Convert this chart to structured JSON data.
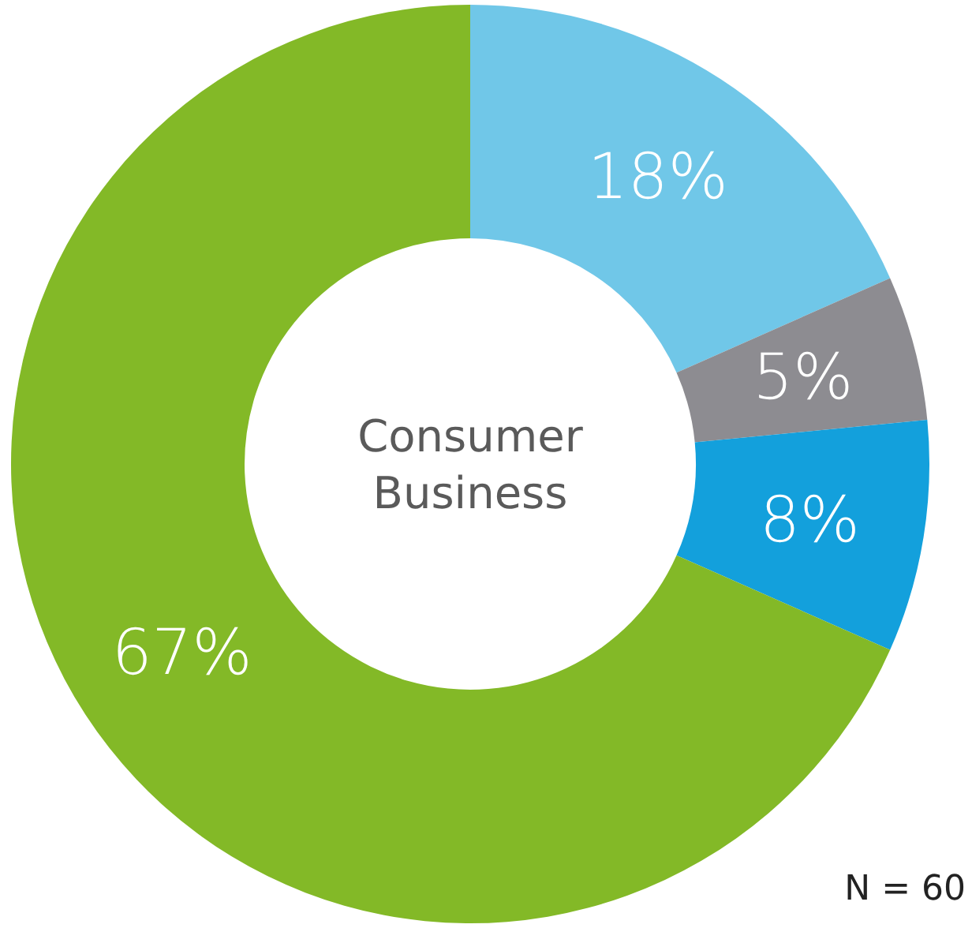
{
  "chart_data": {
    "type": "donut",
    "title": "Consumer Business",
    "categories": [
      null,
      null,
      null,
      null
    ],
    "values": [
      18,
      5,
      8,
      67
    ],
    "value_labels": [
      "18%",
      "5%",
      "8%",
      "67%"
    ],
    "colors": [
      "#70c7e8",
      "#8d8c91",
      "#13a0dc",
      "#83b927"
    ],
    "annotations": [
      "N = 60"
    ]
  }
}
